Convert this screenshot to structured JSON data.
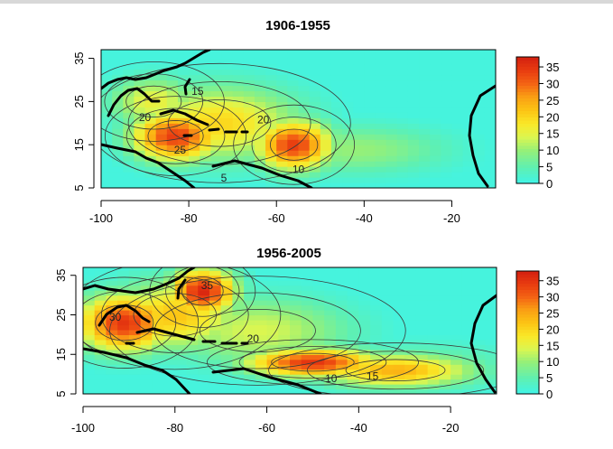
{
  "chart_data": [
    {
      "type": "heatmap",
      "title": "1906-1955",
      "xlabel": "",
      "ylabel": "",
      "xlim": [
        -100,
        -10
      ],
      "ylim": [
        5,
        37
      ],
      "x_ticks": [
        "-100",
        "-80",
        "-60",
        "-40",
        "-20"
      ],
      "y_ticks": [
        "5",
        "15",
        "25",
        "35"
      ],
      "legend": {
        "position": "right",
        "ticks": [
          "0",
          "5",
          "10",
          "15",
          "20",
          "25",
          "30",
          "35"
        ]
      },
      "contour_labels": [
        {
          "text": "15",
          "x": -78,
          "y": 26.5
        },
        {
          "text": "20",
          "x": -90,
          "y": 20.5
        },
        {
          "text": "20",
          "x": -63,
          "y": 20
        },
        {
          "text": "25",
          "x": -82,
          "y": 13
        },
        {
          "text": "10",
          "x": -55,
          "y": 8.5
        },
        {
          "text": "5",
          "x": -72,
          "y": 6.5
        }
      ],
      "hotspots": [
        {
          "x": -83,
          "y": 17,
          "value": 34,
          "sx": 7,
          "sy": 4
        },
        {
          "x": -56,
          "y": 15,
          "value": 34,
          "sx": 6,
          "sy": 4
        },
        {
          "x": -73,
          "y": 20,
          "value": 20,
          "sx": 13,
          "sy": 6
        },
        {
          "x": -42,
          "y": 14,
          "value": 10,
          "sx": 15,
          "sy": 4
        },
        {
          "x": -88,
          "y": 25,
          "value": 16,
          "sx": 7,
          "sy": 4
        }
      ]
    },
    {
      "type": "heatmap",
      "title": "1956-2005",
      "xlabel": "",
      "ylabel": "",
      "xlim": [
        -100,
        -10
      ],
      "ylim": [
        5,
        37
      ],
      "x_ticks": [
        "-100",
        "-80",
        "-60",
        "-40",
        "-20"
      ],
      "y_ticks": [
        "5",
        "15",
        "25",
        "35"
      ],
      "legend": {
        "position": "right",
        "ticks": [
          "0",
          "5",
          "10",
          "15",
          "20",
          "25",
          "30",
          "35"
        ]
      },
      "contour_labels": [
        {
          "text": "30",
          "x": -93,
          "y": 23.5
        },
        {
          "text": "35",
          "x": -73,
          "y": 31.5
        },
        {
          "text": "20",
          "x": -63,
          "y": 18
        },
        {
          "text": "10",
          "x": -46,
          "y": 8
        },
        {
          "text": "15",
          "x": -37,
          "y": 8.5
        }
      ],
      "hotspots": [
        {
          "x": -91,
          "y": 23,
          "value": 35,
          "sx": 7,
          "sy": 5
        },
        {
          "x": -74,
          "y": 31,
          "value": 37,
          "sx": 5,
          "sy": 4
        },
        {
          "x": -50,
          "y": 13,
          "value": 35,
          "sx": 10,
          "sy": 2.5
        },
        {
          "x": -80,
          "y": 25,
          "value": 22,
          "sx": 10,
          "sy": 6
        },
        {
          "x": -32,
          "y": 11,
          "value": 24,
          "sx": 12,
          "sy": 3
        },
        {
          "x": -62,
          "y": 21,
          "value": 14,
          "sx": 14,
          "sy": 6
        },
        {
          "x": -26,
          "y": 12,
          "value": 8,
          "sx": 14,
          "sy": 4
        }
      ]
    }
  ]
}
